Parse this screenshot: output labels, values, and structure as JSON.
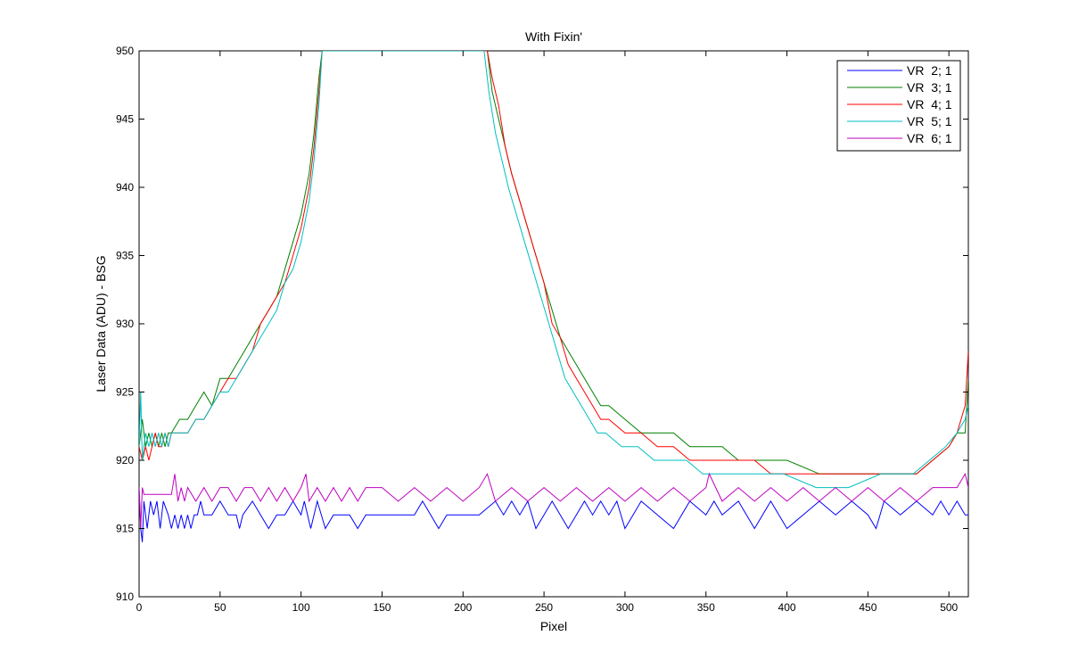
{
  "chart_data": {
    "type": "line",
    "title": "With Fixin'",
    "xlabel": "Pixel",
    "ylabel": "Laser Data (ADU) - BSG",
    "xlim": [
      0,
      512
    ],
    "ylim": [
      910,
      950
    ],
    "xticks": [
      0,
      50,
      100,
      150,
      200,
      250,
      300,
      350,
      400,
      450,
      500
    ],
    "yticks": [
      910,
      915,
      920,
      925,
      930,
      935,
      940,
      945,
      950
    ],
    "grid": false,
    "legend_position": "top-right",
    "series": [
      {
        "name": "VR  2; 1",
        "color": "#0000ff",
        "x": [
          0,
          1,
          2,
          3,
          5,
          7,
          9,
          11,
          13,
          15,
          18,
          20,
          22,
          24,
          26,
          28,
          30,
          32,
          34,
          36,
          38,
          40,
          45,
          50,
          55,
          60,
          62,
          64,
          70,
          75,
          80,
          85,
          90,
          95,
          100,
          102,
          104,
          106,
          108,
          110,
          115,
          120,
          125,
          130,
          135,
          140,
          150,
          160,
          170,
          175,
          180,
          185,
          190,
          200,
          210,
          220,
          225,
          230,
          235,
          240,
          245,
          250,
          255,
          260,
          265,
          270,
          275,
          280,
          285,
          290,
          295,
          300,
          305,
          310,
          320,
          330,
          340,
          350,
          355,
          360,
          370,
          380,
          390,
          400,
          410,
          420,
          430,
          440,
          450,
          455,
          460,
          470,
          480,
          490,
          495,
          500,
          505,
          510,
          512
        ],
        "values": [
          918,
          915,
          914,
          917,
          915,
          917,
          916,
          917,
          915,
          917,
          916,
          915,
          916,
          915,
          916,
          915,
          916,
          915,
          916,
          916,
          917,
          916,
          916,
          917,
          916,
          916,
          915,
          916,
          917,
          916,
          915,
          916,
          916,
          917,
          916,
          917,
          916,
          915,
          916,
          917,
          915,
          916,
          916,
          916,
          915,
          916,
          916,
          916,
          916,
          917,
          916,
          915,
          916,
          916,
          916,
          917,
          916,
          917,
          916,
          917,
          915,
          916,
          917,
          916,
          915,
          916,
          917,
          916,
          917,
          916,
          917,
          915,
          916,
          917,
          916,
          915,
          917,
          916,
          917,
          916,
          917,
          915,
          917,
          915,
          916,
          917,
          916,
          917,
          916,
          915,
          917,
          916,
          917,
          916,
          917,
          916,
          917,
          916,
          916
        ]
      },
      {
        "name": "VR  3; 1",
        "color": "#008000",
        "x": [
          0,
          2,
          4,
          6,
          8,
          10,
          12,
          14,
          16,
          18,
          20,
          25,
          30,
          35,
          40,
          45,
          50,
          55,
          60,
          65,
          70,
          75,
          80,
          85,
          90,
          95,
          100,
          105,
          108,
          111,
          113,
          215,
          218,
          222,
          226,
          230,
          235,
          240,
          245,
          250,
          255,
          260,
          265,
          270,
          275,
          280,
          285,
          290,
          300,
          310,
          320,
          330,
          340,
          350,
          360,
          370,
          380,
          390,
          400,
          420,
          440,
          460,
          480,
          490,
          500,
          505,
          510,
          512
        ],
        "values": [
          921,
          923,
          921,
          922,
          921,
          922,
          921,
          922,
          921,
          922,
          922,
          923,
          923,
          924,
          925,
          924,
          926,
          926,
          927,
          928,
          929,
          930,
          931,
          932,
          934,
          936,
          938,
          941,
          944,
          948,
          950,
          950,
          947,
          945,
          943,
          941,
          939,
          937,
          935,
          933,
          931,
          929,
          928,
          927,
          926,
          925,
          924,
          924,
          923,
          922,
          922,
          922,
          921,
          921,
          921,
          920,
          920,
          920,
          920,
          919,
          919,
          919,
          919,
          920,
          921,
          922,
          922,
          926
        ]
      },
      {
        "name": "VR  4; 1",
        "color": "#ff0000",
        "x": [
          0,
          2,
          4,
          6,
          8,
          10,
          12,
          14,
          16,
          18,
          20,
          25,
          30,
          35,
          40,
          45,
          50,
          55,
          60,
          65,
          70,
          75,
          80,
          85,
          90,
          95,
          100,
          105,
          108,
          111,
          113,
          215,
          218,
          222,
          226,
          230,
          235,
          240,
          245,
          250,
          255,
          260,
          265,
          270,
          275,
          280,
          285,
          290,
          300,
          310,
          320,
          330,
          340,
          350,
          360,
          370,
          380,
          390,
          400,
          420,
          440,
          460,
          480,
          490,
          500,
          505,
          510,
          512
        ],
        "values": [
          921,
          920,
          921,
          920,
          921,
          922,
          921,
          921,
          922,
          921,
          922,
          922,
          922,
          923,
          923,
          924,
          925,
          926,
          926,
          927,
          928,
          930,
          931,
          932,
          933,
          935,
          937,
          940,
          943,
          947,
          950,
          950,
          948,
          946,
          943,
          941,
          939,
          937,
          935,
          933,
          930,
          929,
          927,
          926,
          925,
          924,
          923,
          923,
          922,
          922,
          921,
          921,
          920,
          920,
          920,
          920,
          920,
          919,
          919,
          919,
          919,
          919,
          919,
          920,
          921,
          922,
          924,
          928
        ]
      },
      {
        "name": "VR  5; 1",
        "color": "#00bfbf",
        "x": [
          0,
          1,
          2,
          4,
          6,
          8,
          10,
          12,
          14,
          16,
          18,
          20,
          25,
          30,
          35,
          40,
          45,
          50,
          55,
          60,
          65,
          70,
          75,
          80,
          85,
          90,
          95,
          100,
          105,
          108,
          111,
          113,
          213,
          216,
          220,
          224,
          228,
          233,
          238,
          243,
          248,
          253,
          258,
          263,
          268,
          273,
          278,
          283,
          288,
          298,
          308,
          318,
          328,
          338,
          348,
          358,
          368,
          378,
          388,
          398,
          418,
          438,
          458,
          478,
          488,
          498,
          505,
          510,
          512
        ],
        "values": [
          921,
          925,
          920,
          922,
          921,
          922,
          921,
          922,
          921,
          922,
          921,
          922,
          922,
          922,
          923,
          923,
          924,
          925,
          925,
          926,
          927,
          928,
          929,
          930,
          931,
          933,
          934,
          936,
          939,
          942,
          946,
          950,
          950,
          947,
          944,
          942,
          940,
          938,
          936,
          934,
          932,
          930,
          928,
          926,
          925,
          924,
          923,
          922,
          922,
          921,
          921,
          920,
          920,
          920,
          919,
          919,
          919,
          919,
          919,
          919,
          918,
          918,
          919,
          919,
          920,
          921,
          922,
          923,
          924
        ]
      },
      {
        "name": "VR  6; 1",
        "color": "#bf00bf",
        "x": [
          0,
          1,
          2,
          3,
          5,
          10,
          20,
          22,
          24,
          26,
          28,
          30,
          35,
          40,
          45,
          50,
          55,
          60,
          65,
          70,
          75,
          80,
          85,
          90,
          95,
          100,
          103,
          105,
          110,
          115,
          120,
          125,
          130,
          135,
          140,
          150,
          160,
          170,
          180,
          190,
          200,
          210,
          215,
          220,
          230,
          240,
          250,
          260,
          270,
          280,
          290,
          300,
          310,
          320,
          330,
          340,
          350,
          352,
          360,
          370,
          380,
          390,
          400,
          410,
          420,
          430,
          440,
          450,
          460,
          470,
          480,
          490,
          500,
          505,
          510,
          512
        ],
        "values": [
          918,
          915,
          918,
          917.5,
          917.5,
          917.5,
          917.5,
          919,
          917,
          918,
          917,
          918,
          917,
          918,
          917,
          918,
          918,
          917,
          918,
          918,
          917,
          918,
          917,
          918,
          917,
          918,
          919,
          917,
          918,
          917,
          918,
          917,
          918,
          917,
          918,
          918,
          917,
          918,
          917,
          918,
          917,
          918,
          919,
          917,
          918,
          917,
          918,
          917,
          918,
          917,
          918,
          917,
          918,
          917,
          918,
          917,
          918,
          919,
          917,
          918,
          917,
          918,
          917,
          918,
          917,
          918,
          917,
          918,
          917,
          918,
          917,
          918,
          918,
          918,
          919,
          918
        ]
      }
    ]
  }
}
